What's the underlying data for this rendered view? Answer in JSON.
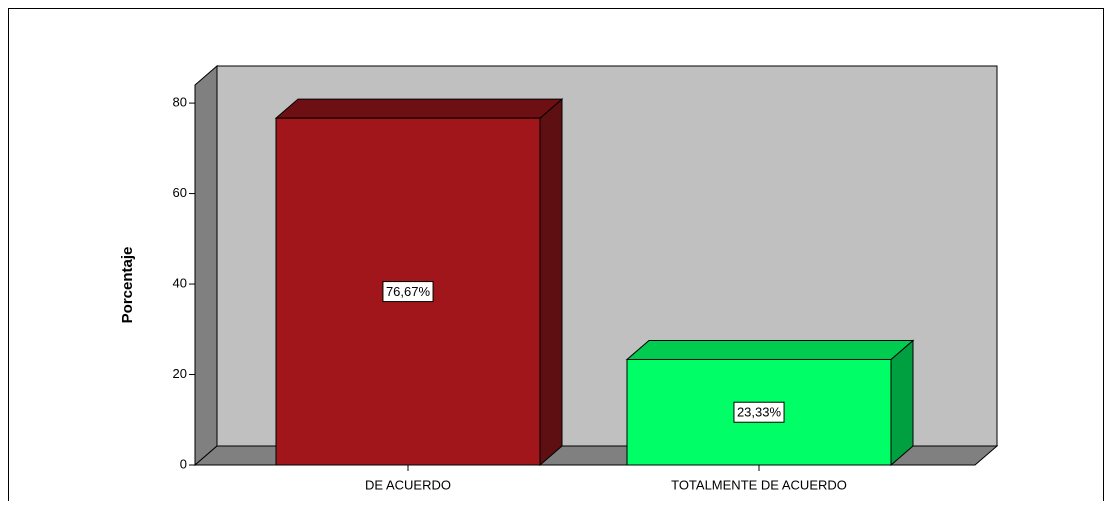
{
  "chart_data": {
    "type": "bar3d",
    "y_label": "Porcentaje",
    "categories": [
      "DE ACUERDO",
      "TOTALMENTE DE ACUERDO"
    ],
    "values": [
      76.67,
      23.33
    ],
    "value_labels": [
      "76,67%",
      "23,33%"
    ],
    "colors": [
      "#a0161a",
      "#00ff66"
    ],
    "side_colors": [
      "#5e0f12",
      "#00a040"
    ],
    "top_colors": [
      "#6e1013",
      "#00cc50"
    ],
    "ylim": [
      0,
      84
    ],
    "yticks": [
      0,
      20,
      40,
      60,
      80
    ]
  }
}
